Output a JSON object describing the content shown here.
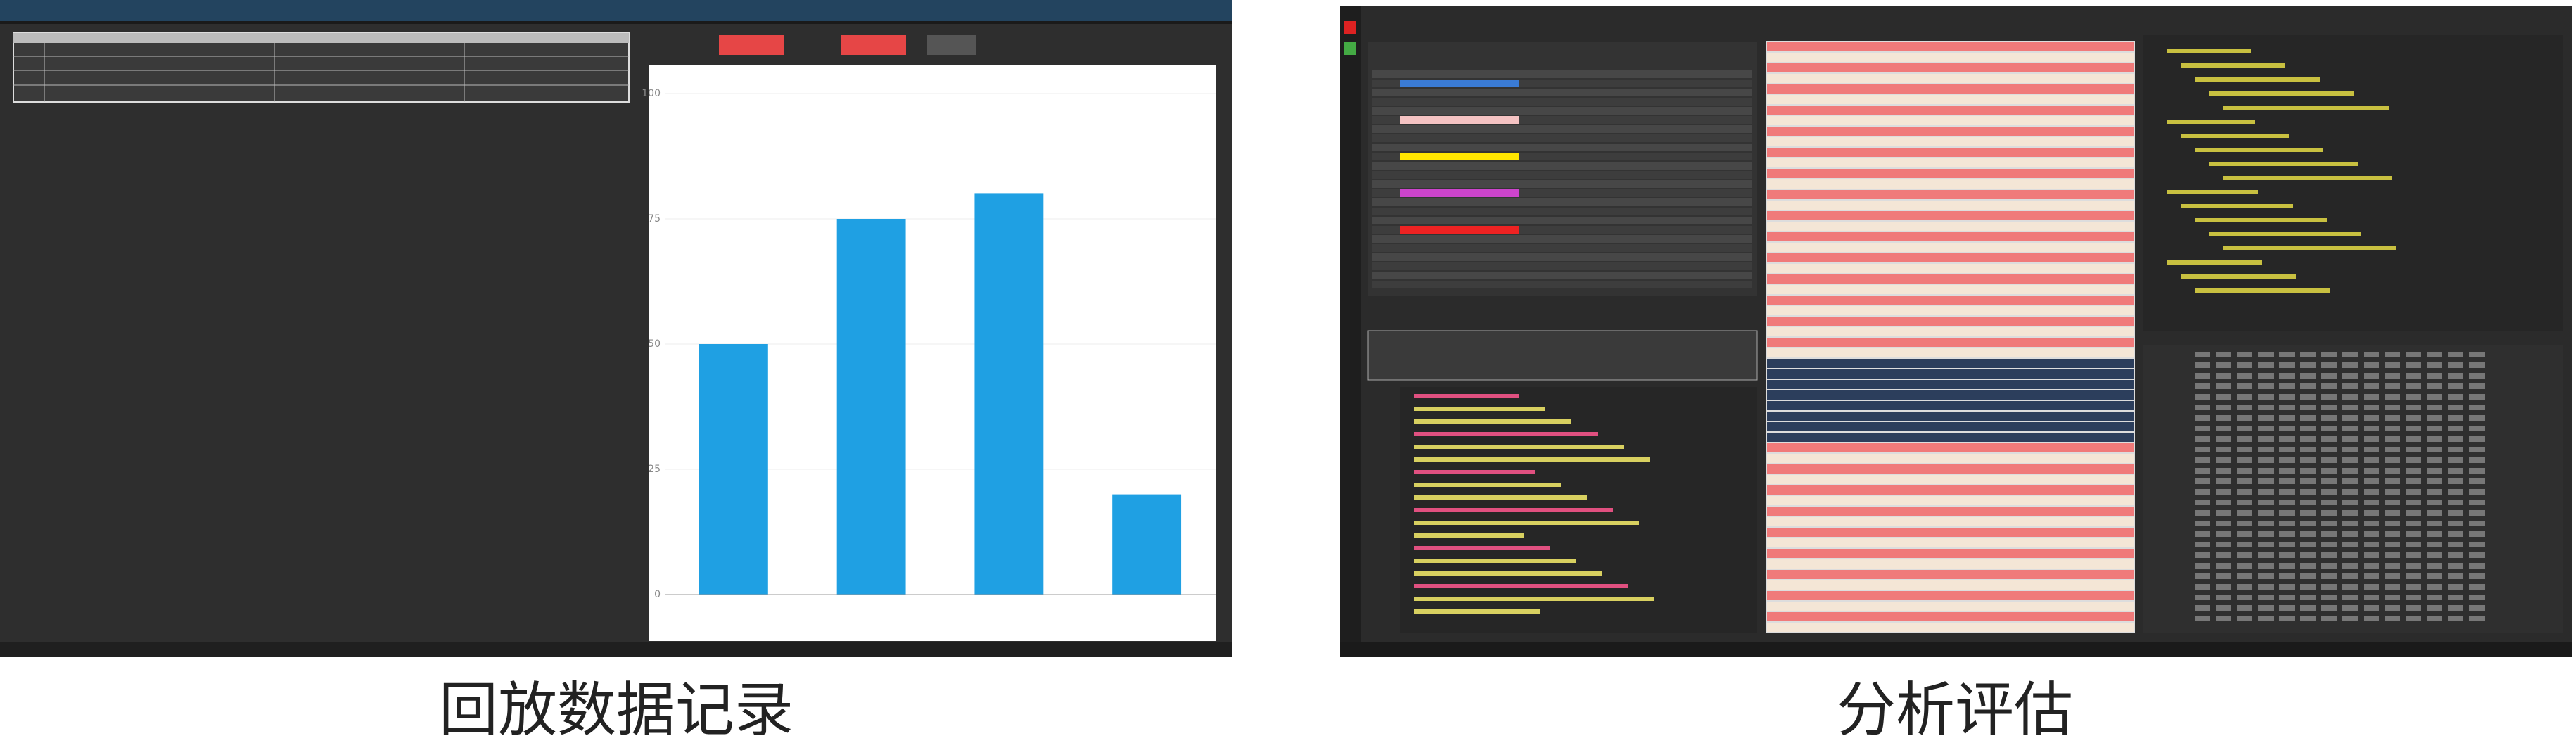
{
  "captions": {
    "left": "回放数据记录",
    "right": "分析评估"
  },
  "left_screen": {
    "chart": {
      "type": "bar",
      "values": [
        50,
        75,
        80,
        20
      ],
      "color": "#1fa0e3",
      "ylim": [
        0,
        100
      ],
      "yticks": [
        0,
        25,
        50,
        75,
        100
      ],
      "grid": true
    }
  }
}
